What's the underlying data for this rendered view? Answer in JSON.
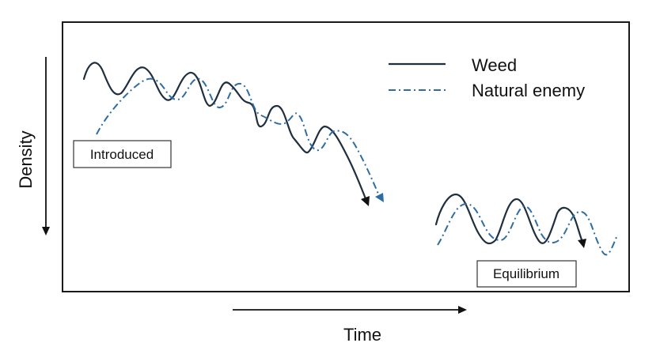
{
  "axes": {
    "x_label": "Time",
    "y_label": "Density"
  },
  "legend": {
    "items": [
      {
        "label": "Weed",
        "style": "solid",
        "color": "#1f2f3f"
      },
      {
        "label": "Natural enemy",
        "style": "dash-dot",
        "color": "#2e6da4"
      }
    ]
  },
  "annotations": {
    "introduced": "Introduced",
    "equilibrium": "Equilibrium"
  }
}
